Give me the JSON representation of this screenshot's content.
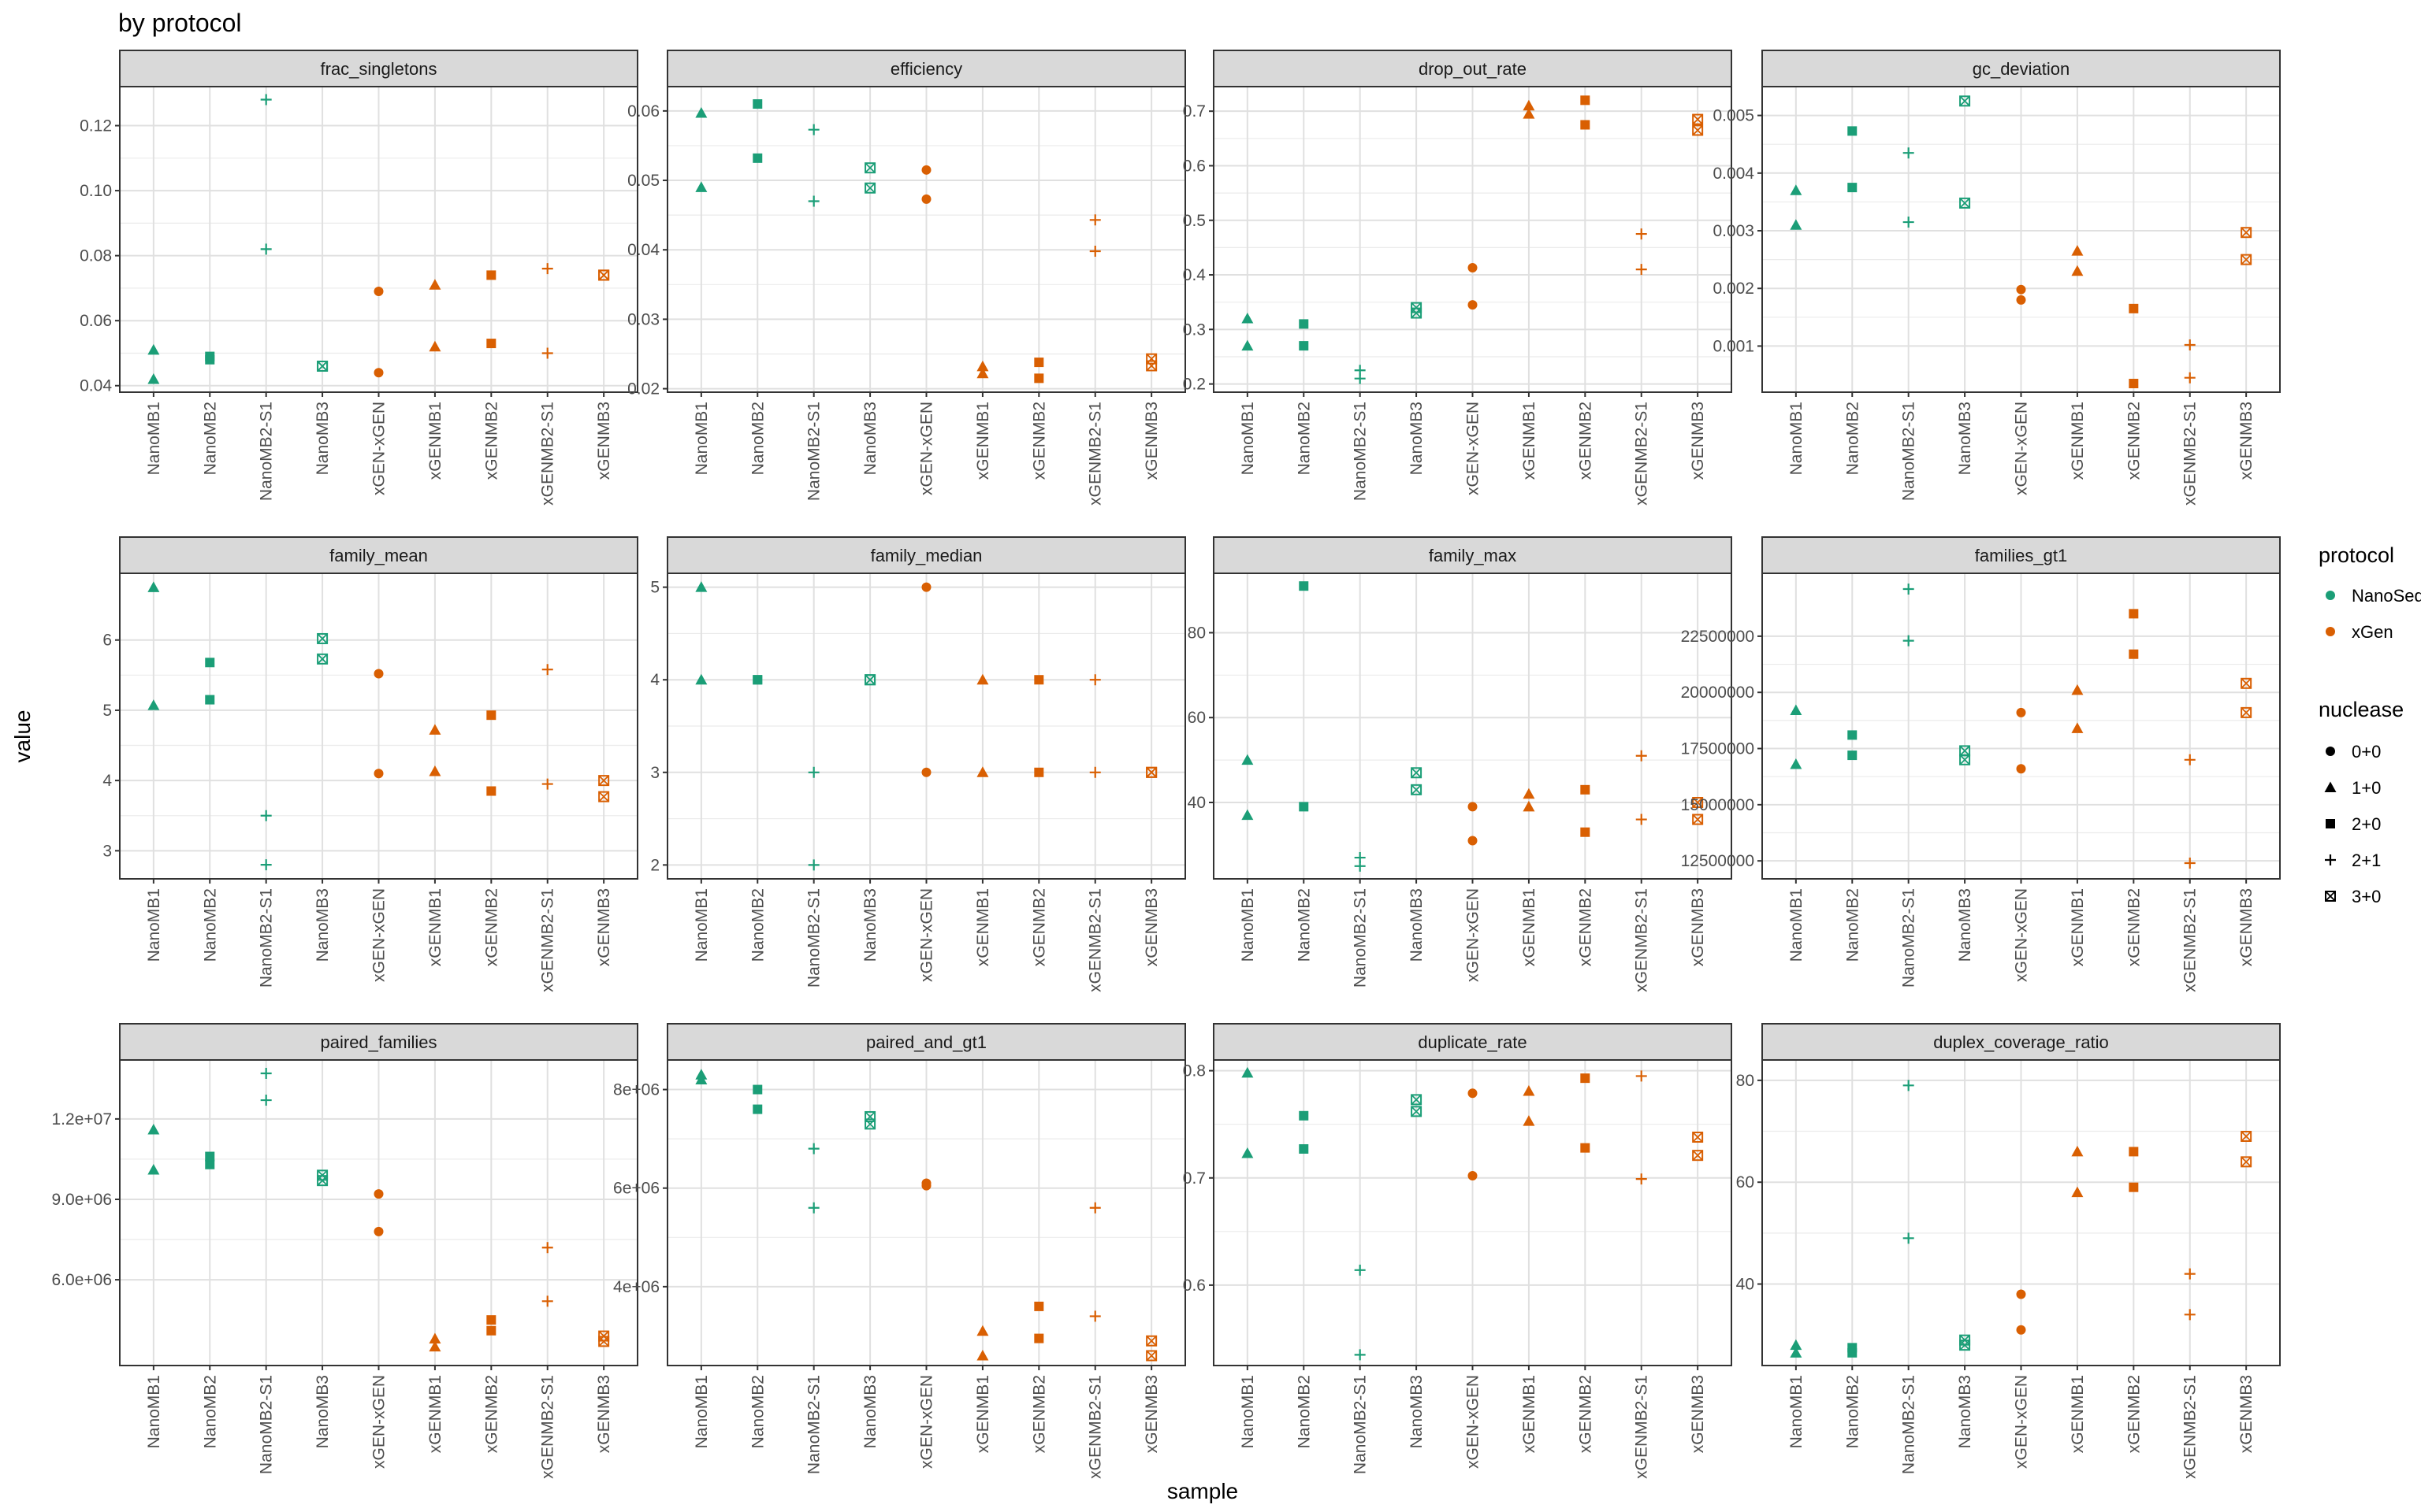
{
  "title": "by protocol",
  "xlabel": "sample",
  "ylabel": "value",
  "samples": [
    "NanoMB1",
    "NanoMB2",
    "NanoMB2-S1",
    "NanoMB3",
    "xGEN-xGEN",
    "xGENMB1",
    "xGENMB2",
    "xGENMB2-S1",
    "xGENMB3"
  ],
  "sample_protocol": [
    "NanoSeq",
    "NanoSeq",
    "NanoSeq",
    "NanoSeq",
    "xGen",
    "xGen",
    "xGen",
    "xGen",
    "xGen"
  ],
  "sample_nuclease": [
    "1+0",
    "2+0",
    "2+1",
    "3+0",
    "0+0",
    "1+0",
    "2+0",
    "2+1",
    "3+0"
  ],
  "legend": {
    "protocol_title": "protocol",
    "protocols": [
      {
        "name": "NanoSeq",
        "color": "#1b9e77"
      },
      {
        "name": "xGen",
        "color": "#d95f02"
      }
    ],
    "nuclease_title": "nuclease",
    "nucleases": [
      {
        "name": "0+0",
        "shape": "circle"
      },
      {
        "name": "1+0",
        "shape": "triangle"
      },
      {
        "name": "2+0",
        "shape": "square"
      },
      {
        "name": "2+1",
        "shape": "plus"
      },
      {
        "name": "3+0",
        "shape": "boxx"
      }
    ]
  },
  "chart_data": [
    {
      "type": "scatter",
      "title": "frac_singletons",
      "ylim": [
        0.038,
        0.132
      ],
      "yticks": [
        0.04,
        0.06,
        0.08,
        0.1,
        0.12
      ],
      "yticklabels": [
        "0.04",
        "0.06",
        "0.08",
        "0.10",
        "0.12"
      ],
      "values": [
        [
          0.042,
          0.051
        ],
        [
          0.048,
          0.049
        ],
        [
          0.082,
          0.128
        ],
        [
          0.046,
          0.046
        ],
        [
          0.044,
          0.069
        ],
        [
          0.052,
          0.071
        ],
        [
          0.053,
          0.074
        ],
        [
          0.05,
          0.076
        ],
        [
          0.074,
          0.074
        ]
      ]
    },
    {
      "type": "scatter",
      "title": "efficiency",
      "ylim": [
        0.0195,
        0.0635
      ],
      "yticks": [
        0.02,
        0.03,
        0.04,
        0.05,
        0.06
      ],
      "yticklabels": [
        "0.02",
        "0.03",
        "0.04",
        "0.05",
        "0.06"
      ],
      "values": [
        [
          0.049,
          0.0597
        ],
        [
          0.0532,
          0.061
        ],
        [
          0.047,
          0.0573
        ],
        [
          0.0489,
          0.0518
        ],
        [
          0.0473,
          0.0515
        ],
        [
          0.0222,
          0.0232
        ],
        [
          0.0215,
          0.0238
        ],
        [
          0.0398,
          0.0443
        ],
        [
          0.0233,
          0.0243
        ]
      ]
    },
    {
      "type": "scatter",
      "title": "drop_out_rate",
      "ylim": [
        0.185,
        0.745
      ],
      "yticks": [
        0.2,
        0.3,
        0.4,
        0.5,
        0.6,
        0.7
      ],
      "yticklabels": [
        "0.2",
        "0.3",
        "0.4",
        "0.5",
        "0.6",
        "0.7"
      ],
      "values": [
        [
          0.27,
          0.32
        ],
        [
          0.27,
          0.31
        ],
        [
          0.21,
          0.225
        ],
        [
          0.33,
          0.34
        ],
        [
          0.345,
          0.413
        ],
        [
          0.695,
          0.71
        ],
        [
          0.675,
          0.72
        ],
        [
          0.41,
          0.475
        ],
        [
          0.665,
          0.685
        ]
      ]
    },
    {
      "type": "scatter",
      "title": "gc_deviation",
      "ylim": [
        0.0002,
        0.0055
      ],
      "yticks": [
        0.001,
        0.002,
        0.003,
        0.004,
        0.005
      ],
      "yticklabels": [
        "0.001",
        "0.002",
        "0.003",
        "0.004",
        "0.005"
      ],
      "values": [
        [
          0.0031,
          0.0037
        ],
        [
          0.00375,
          0.00473
        ],
        [
          0.00315,
          0.00435
        ],
        [
          0.00348,
          0.00525
        ],
        [
          0.0018,
          0.00198
        ],
        [
          0.0023,
          0.00265
        ],
        [
          0.00035,
          0.00165
        ],
        [
          0.00045,
          0.00102
        ],
        [
          0.0025,
          0.00297
        ]
      ]
    },
    {
      "type": "scatter",
      "title": "family_mean",
      "ylim": [
        2.6,
        6.95
      ],
      "yticks": [
        3,
        4,
        5,
        6
      ],
      "yticklabels": [
        "3",
        "4",
        "5",
        "6"
      ],
      "values": [
        [
          5.07,
          6.75
        ],
        [
          5.15,
          5.68
        ],
        [
          2.8,
          3.5
        ],
        [
          5.73,
          6.02
        ],
        [
          4.1,
          5.52
        ],
        [
          4.13,
          4.72
        ],
        [
          3.85,
          4.93
        ],
        [
          3.95,
          5.58
        ],
        [
          3.77,
          4.0
        ]
      ]
    },
    {
      "type": "scatter",
      "title": "family_median",
      "ylim": [
        1.85,
        5.15
      ],
      "yticks": [
        2,
        3,
        4,
        5
      ],
      "yticklabels": [
        "2",
        "3",
        "4",
        "5"
      ],
      "values": [
        [
          4,
          5
        ],
        [
          4,
          4
        ],
        [
          2,
          3
        ],
        [
          4,
          4
        ],
        [
          3,
          5
        ],
        [
          3,
          4
        ],
        [
          3,
          4
        ],
        [
          3,
          4
        ],
        [
          3,
          3
        ]
      ]
    },
    {
      "type": "scatter",
      "title": "family_max",
      "ylim": [
        22,
        94
      ],
      "yticks": [
        40,
        60,
        80
      ],
      "yticklabels": [
        "40",
        "60",
        "80"
      ],
      "values": [
        [
          37,
          50
        ],
        [
          39,
          91
        ],
        [
          25,
          27
        ],
        [
          43,
          47
        ],
        [
          31,
          39
        ],
        [
          39,
          42
        ],
        [
          33,
          43
        ],
        [
          36,
          51
        ],
        [
          36,
          40
        ]
      ]
    },
    {
      "type": "scatter",
      "title": "families_gt1",
      "ylim": [
        11700000,
        25300000
      ],
      "yticks": [
        12500000,
        15000000,
        17500000,
        20000000,
        22500000
      ],
      "yticklabels": [
        "12500000",
        "15000000",
        "17500000",
        "20000000",
        "22500000"
      ],
      "values": [
        [
          16800000,
          19200000
        ],
        [
          17200000,
          18100000
        ],
        [
          22300000,
          24600000
        ],
        [
          17000000,
          17400000
        ],
        [
          16600000,
          19100000
        ],
        [
          18400000,
          20100000
        ],
        [
          21700000,
          23500000
        ],
        [
          12400000,
          17000000
        ],
        [
          19100000,
          20400000
        ]
      ]
    },
    {
      "type": "scatter",
      "title": "paired_families",
      "ylim": [
        2800000,
        14200000
      ],
      "yticks": [
        6000000,
        9000000,
        12000000
      ],
      "yticklabels": [
        "6.0e+06",
        "9.0e+06",
        "1.2e+07"
      ],
      "values": [
        [
          10100000,
          11600000
        ],
        [
          10300000,
          10600000
        ],
        [
          12700000,
          13700000
        ],
        [
          9700000,
          9900000
        ],
        [
          7800000,
          9200000
        ],
        [
          3500000,
          3800000
        ],
        [
          4100000,
          4500000
        ],
        [
          5200000,
          7200000
        ],
        [
          3700000,
          3900000
        ]
      ]
    },
    {
      "type": "scatter",
      "title": "paired_and_gt1",
      "ylim": [
        2400000,
        8600000
      ],
      "yticks": [
        4000000,
        6000000,
        8000000
      ],
      "yticklabels": [
        "4e+06",
        "6e+06",
        "8e+06"
      ],
      "values": [
        [
          8200000,
          8300000
        ],
        [
          7600000,
          8000000
        ],
        [
          5600000,
          6800000
        ],
        [
          7300000,
          7450000
        ],
        [
          6050000,
          6100000
        ],
        [
          2600000,
          3100000
        ],
        [
          2950000,
          3600000
        ],
        [
          3400000,
          5600000
        ],
        [
          2600000,
          2900000
        ]
      ]
    },
    {
      "type": "scatter",
      "title": "duplicate_rate",
      "ylim": [
        0.525,
        0.81
      ],
      "yticks": [
        0.6,
        0.7,
        0.8
      ],
      "yticklabels": [
        "0.6",
        "0.7",
        "0.8"
      ],
      "values": [
        [
          0.723,
          0.798
        ],
        [
          0.727,
          0.758
        ],
        [
          0.535,
          0.614
        ],
        [
          0.762,
          0.773
        ],
        [
          0.702,
          0.779
        ],
        [
          0.753,
          0.781
        ],
        [
          0.728,
          0.793
        ],
        [
          0.699,
          0.795
        ],
        [
          0.721,
          0.738
        ]
      ]
    },
    {
      "type": "scatter",
      "title": "duplex_coverage_ratio",
      "ylim": [
        24,
        84
      ],
      "yticks": [
        40,
        60,
        80
      ],
      "yticklabels": [
        "40",
        "60",
        "80"
      ],
      "values": [
        [
          26.5,
          28
        ],
        [
          26.5,
          27.5
        ],
        [
          49,
          79
        ],
        [
          28,
          29
        ],
        [
          31,
          38
        ],
        [
          58,
          66
        ],
        [
          59,
          66
        ],
        [
          34,
          42
        ],
        [
          64,
          69
        ]
      ]
    }
  ]
}
